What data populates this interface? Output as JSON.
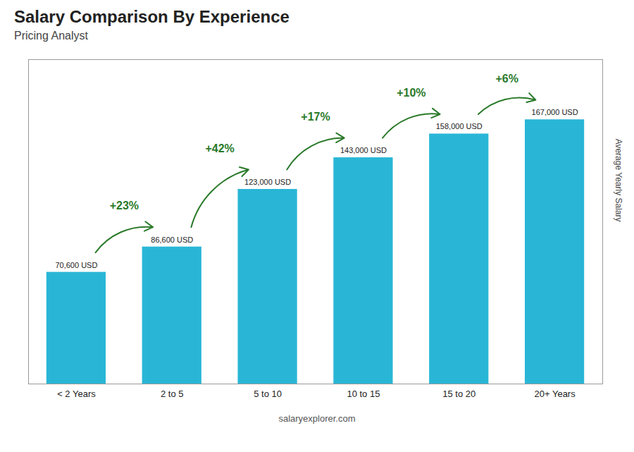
{
  "chart_data": {
    "type": "bar",
    "title": "Salary Comparison By Experience",
    "subtitle": "Pricing Analyst",
    "ylabel": "Average Yearly Salary",
    "categories": [
      "< 2 Years",
      "2 to 5",
      "5 to 10",
      "10 to 15",
      "15 to 20",
      "20+ Years"
    ],
    "values": [
      70600,
      86600,
      123000,
      143000,
      158000,
      167000
    ],
    "value_labels": [
      "70,600 USD",
      "86,600 USD",
      "123,000 USD",
      "143,000 USD",
      "158,000 USD",
      "167,000 USD"
    ],
    "data_labels": true,
    "color": "#29b6d6",
    "ylim": [
      0,
      205000
    ],
    "tick_labels": "x",
    "grid": false,
    "annotations": [
      {
        "text": "+23%",
        "from": "< 2 Years",
        "to": "2 to 5"
      },
      {
        "text": "+42%",
        "from": "2 to 5",
        "to": "5 to 10"
      },
      {
        "text": "+17%",
        "from": "5 to 10",
        "to": "10 to 15"
      },
      {
        "text": "+10%",
        "from": "10 to 15",
        "to": "15 to 20"
      },
      {
        "text": "+6%",
        "from": "15 to 20",
        "to": "20+ Years"
      }
    ],
    "caption": "salaryexplorer.com"
  }
}
